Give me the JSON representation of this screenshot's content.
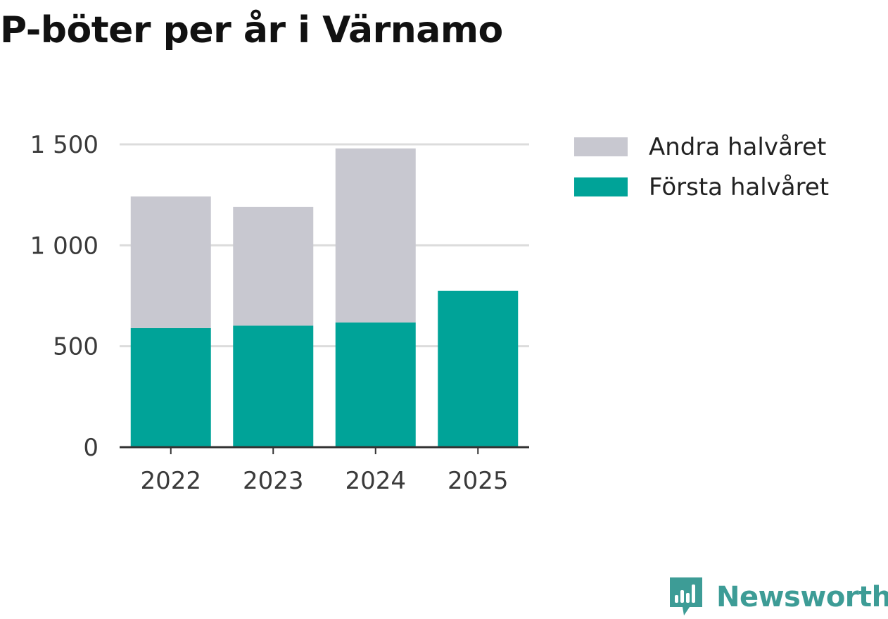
{
  "title": "P-böter per år i Värnamo",
  "brand": {
    "name": "Newsworthy",
    "icon": "newsworthy-logo-icon"
  },
  "colors": {
    "first_half": "#00a398",
    "second_half": "#c8c8d0",
    "grid": "#dcdcdc",
    "axis": "#333333",
    "brand": "#3d9c96"
  },
  "chart_data": {
    "type": "bar",
    "stacked": true,
    "title": "P-böter per år i Värnamo",
    "xlabel": "",
    "ylabel": "",
    "categories": [
      "2022",
      "2023",
      "2024",
      "2025"
    ],
    "series": [
      {
        "name": "Första halvåret",
        "values": [
          590,
          602,
          618,
          775
        ],
        "color": "#00a398"
      },
      {
        "name": "Andra halvåret",
        "values": [
          652,
          588,
          862,
          0
        ],
        "color": "#c8c8d0"
      }
    ],
    "ylim": [
      0,
      1500
    ],
    "yticks": [
      0,
      500,
      1000,
      1500
    ],
    "ytick_labels": [
      "0",
      "500",
      "1 000",
      "1 500"
    ],
    "grid": true,
    "legend": {
      "position": "right",
      "entries": [
        "Andra halvåret",
        "Första halvåret"
      ]
    }
  }
}
